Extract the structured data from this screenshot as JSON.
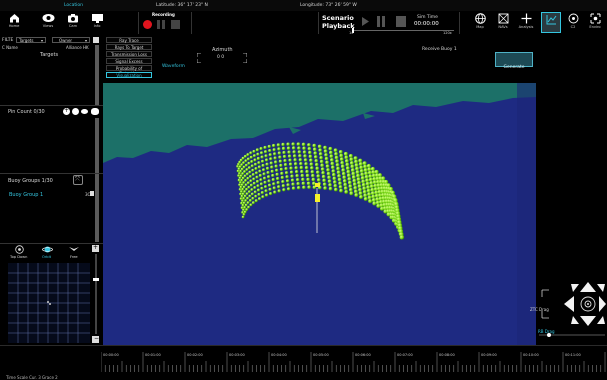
{
  "topbar": {
    "location_label": "Location",
    "latitude": "Latitude: 36° 17' 23\" N",
    "longitude": "Longitude: 73° 26' 59\" W"
  },
  "toolbar": {
    "buttons": [
      {
        "label": "Home"
      },
      {
        "label": "Views"
      },
      {
        "label": "Cam"
      },
      {
        "label": "Info"
      }
    ],
    "recording_label": "Recording",
    "scenario_title_1": "Scenario",
    "scenario_title_2": "Playback",
    "scenario_speed": "1x",
    "sim_time_label": "Sim Time",
    "sim_time_value": "00:00:00",
    "sim_speed": "120x",
    "right_buttons": [
      {
        "label": "Map"
      },
      {
        "label": "NAVs"
      },
      {
        "label": "Analysis"
      },
      {
        "label": ""
      },
      {
        "label": "C2"
      },
      {
        "label": "Enviro"
      }
    ]
  },
  "left": {
    "filter_label": "FILTE",
    "filter_value": "Targets",
    "owner_value": "Owner",
    "col_name": "C  Name",
    "col_alliance": "Alliance  HK",
    "targets_label": "Targets",
    "pin_count": "Pin Count  0/30",
    "buoy_groups": "Buoy Groups  1/30",
    "buoy_group_item": "Buoy Group 1",
    "buoy_group_tag": "3C",
    "view_modes": [
      {
        "label": "Top Down"
      },
      {
        "label": "Orbit"
      },
      {
        "label": "Free"
      }
    ]
  },
  "raymenu": {
    "items": [
      "Ray Trace",
      "Rays To Target",
      "Transmission Loss",
      "Signal Excess",
      "Probability of Detection",
      "Visualization"
    ]
  },
  "controls": {
    "azimuth_label": "Azimuth",
    "azimuth_value": "0 0",
    "waveform_label": "Waveform",
    "receive_buoy": "Receive Buoy 1",
    "generate_label": "Generate"
  },
  "right": {
    "ztc_label": "ZTC Drag",
    "rb_label": "RB Drag"
  },
  "timeline": {
    "ticks": [
      "00:00:00",
      "00:01:00",
      "00:02:00",
      "00:03:00",
      "00:04:00",
      "00:05:00",
      "00:06:00",
      "00:07:00",
      "00:08:00",
      "00:09:00",
      "00:10:00",
      "00:11:00",
      "00:12:00"
    ],
    "footer": "Time Scale  Cur.  3 Grace 2"
  },
  "colors": {
    "accent": "#34c6e0",
    "ocean": "#1e2a82",
    "land": "#1c7068",
    "buoy": "#7ddc19",
    "record": "#e0141e"
  }
}
